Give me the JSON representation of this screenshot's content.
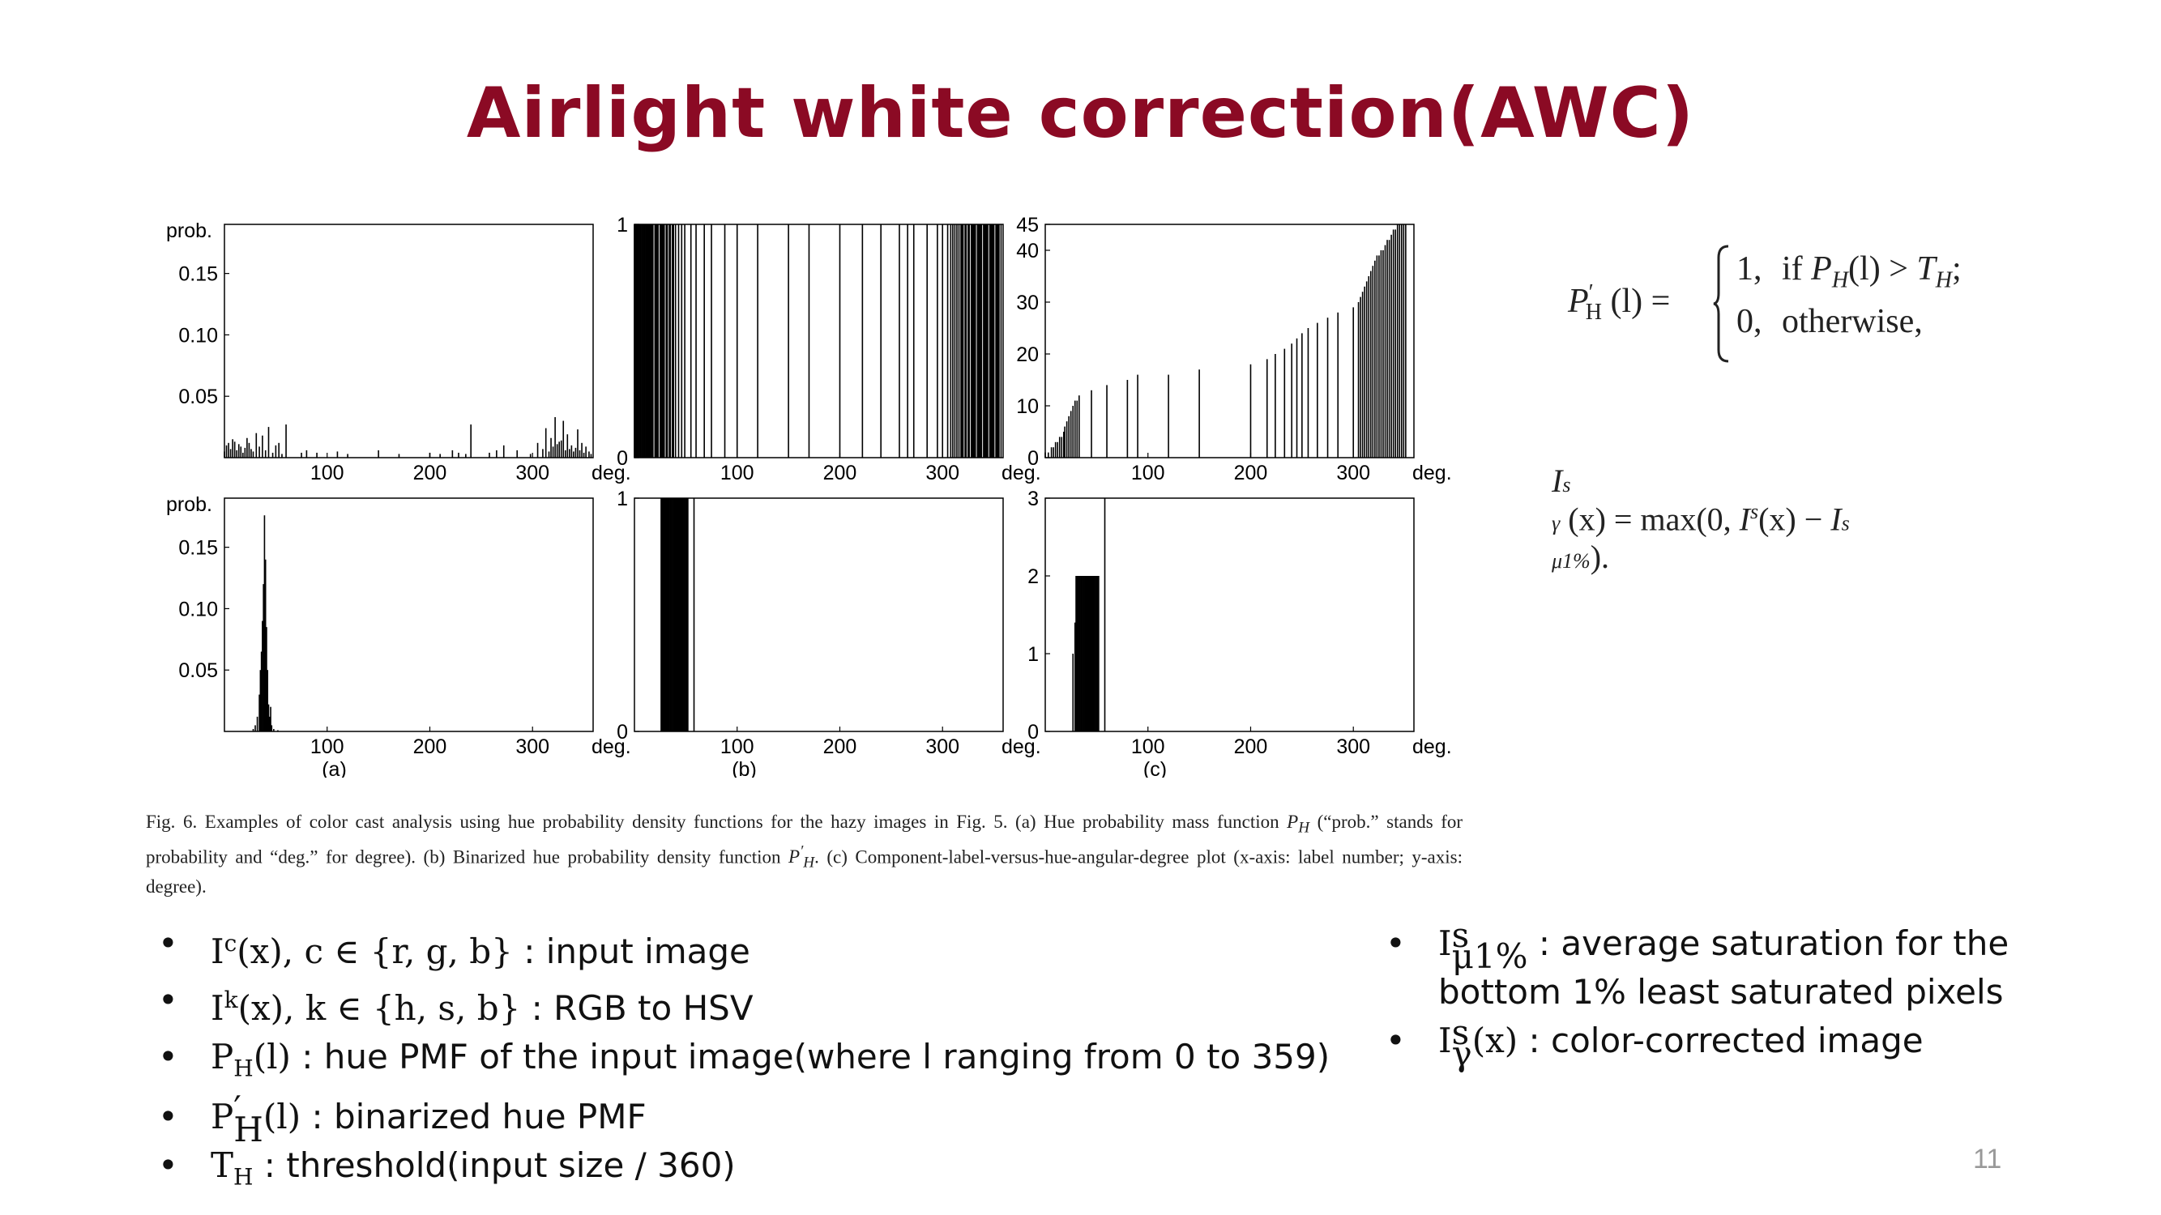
{
  "title": "Airlight white correction(AWC)",
  "colors": {
    "title": "#8b0a24",
    "bar": "#000000"
  },
  "figure": {
    "caption_label": "Fig. 6.",
    "caption_p1": "Examples of color cast analysis using hue probability density functions for the hazy images in Fig. 5. (a) Hue probability mass function",
    "caption_sym1": "P",
    "caption_sym1_sub": "H",
    "caption_p2": "(“prob.” stands for probability and “deg.” for degree). (b) Binarized hue probability density function",
    "caption_sym2": "P",
    "caption_sym2_sup": "′",
    "caption_sym2_sub": "H",
    "caption_p3": ". (c) Component-label-versus-hue-angular-degree plot (x-axis: label number; y-axis: degree)."
  },
  "chart_data": [
    {
      "id": "a-top",
      "type": "bar",
      "ylabel": "prob.",
      "xlabel": "deg.",
      "xlim": [
        0,
        359
      ],
      "ylim": [
        0,
        0.19
      ],
      "yticks": [
        "0.05",
        "0.10",
        "0.15"
      ],
      "ytick_values": [
        0.05,
        0.1,
        0.15
      ],
      "xticks": [
        "100",
        "200",
        "300"
      ],
      "xtick_values": [
        100,
        200,
        300
      ],
      "subplot_label": "",
      "bars": [
        [
          0,
          0.005
        ],
        [
          2,
          0.01
        ],
        [
          4,
          0.012
        ],
        [
          6,
          0.007
        ],
        [
          8,
          0.015
        ],
        [
          10,
          0.013
        ],
        [
          12,
          0.006
        ],
        [
          14,
          0.011
        ],
        [
          16,
          0.009
        ],
        [
          18,
          0.004
        ],
        [
          20,
          0.008
        ],
        [
          22,
          0.016
        ],
        [
          24,
          0.012
        ],
        [
          26,
          0.007
        ],
        [
          28,
          0.005
        ],
        [
          31,
          0.02
        ],
        [
          34,
          0.009
        ],
        [
          37,
          0.018
        ],
        [
          40,
          0.006
        ],
        [
          43,
          0.025
        ],
        [
          47,
          0.004
        ],
        [
          50,
          0.01
        ],
        [
          53,
          0.012
        ],
        [
          56,
          0.003
        ],
        [
          60,
          0.027
        ],
        [
          75,
          0.004
        ],
        [
          80,
          0.006
        ],
        [
          90,
          0.004
        ],
        [
          110,
          0.005
        ],
        [
          120,
          0.003
        ],
        [
          150,
          0.006
        ],
        [
          170,
          0.003
        ],
        [
          200,
          0.004
        ],
        [
          210,
          0.003
        ],
        [
          222,
          0.006
        ],
        [
          228,
          0.004
        ],
        [
          235,
          0.003
        ],
        [
          240,
          0.027
        ],
        [
          258,
          0.004
        ],
        [
          265,
          0.006
        ],
        [
          272,
          0.01
        ],
        [
          285,
          0.006
        ],
        [
          298,
          0.003
        ],
        [
          305,
          0.012
        ],
        [
          310,
          0.007
        ],
        [
          313,
          0.024
        ],
        [
          316,
          0.005
        ],
        [
          318,
          0.016
        ],
        [
          320,
          0.009
        ],
        [
          322,
          0.033
        ],
        [
          324,
          0.011
        ],
        [
          326,
          0.013
        ],
        [
          328,
          0.014
        ],
        [
          330,
          0.03
        ],
        [
          332,
          0.006
        ],
        [
          334,
          0.019
        ],
        [
          336,
          0.007
        ],
        [
          338,
          0.01
        ],
        [
          340,
          0.005
        ],
        [
          342,
          0.008
        ],
        [
          344,
          0.023
        ],
        [
          346,
          0.006
        ],
        [
          348,
          0.012
        ],
        [
          350,
          0.004
        ],
        [
          352,
          0.009
        ],
        [
          355,
          0.005
        ],
        [
          357,
          0.003
        ]
      ]
    },
    {
      "id": "b-top",
      "type": "bar",
      "ylabel": "",
      "xlabel": "deg.",
      "xlim": [
        0,
        359
      ],
      "ylim": [
        0,
        1
      ],
      "yticks": [
        "0",
        "1"
      ],
      "ytick_values": [
        0,
        1
      ],
      "xticks": [
        "100",
        "200",
        "300"
      ],
      "xtick_values": [
        100,
        200,
        300
      ],
      "subplot_label": "",
      "bars": [
        [
          0,
          1
        ],
        [
          1,
          1
        ],
        [
          2,
          1
        ],
        [
          3,
          1
        ],
        [
          4,
          1
        ],
        [
          5,
          1
        ],
        [
          6,
          1
        ],
        [
          7,
          1
        ],
        [
          8,
          1
        ],
        [
          9,
          1
        ],
        [
          10,
          1
        ],
        [
          11,
          1
        ],
        [
          12,
          1
        ],
        [
          13,
          1
        ],
        [
          14,
          1
        ],
        [
          15,
          1
        ],
        [
          16,
          1
        ],
        [
          17,
          1
        ],
        [
          18,
          1
        ],
        [
          20,
          1
        ],
        [
          21,
          1
        ],
        [
          22,
          1
        ],
        [
          23,
          1
        ],
        [
          25,
          1
        ],
        [
          26,
          1
        ],
        [
          27,
          1
        ],
        [
          28,
          1
        ],
        [
          29,
          1
        ],
        [
          31,
          1
        ],
        [
          32,
          1
        ],
        [
          34,
          1
        ],
        [
          35,
          1
        ],
        [
          37,
          1
        ],
        [
          38,
          1
        ],
        [
          40,
          1
        ],
        [
          43,
          1
        ],
        [
          46,
          1
        ],
        [
          49,
          1
        ],
        [
          55,
          1
        ],
        [
          60,
          1
        ],
        [
          68,
          1
        ],
        [
          75,
          1
        ],
        [
          88,
          1
        ],
        [
          100,
          1
        ],
        [
          120,
          1
        ],
        [
          150,
          1
        ],
        [
          170,
          1
        ],
        [
          200,
          1
        ],
        [
          222,
          1
        ],
        [
          240,
          1
        ],
        [
          258,
          1
        ],
        [
          266,
          1
        ],
        [
          272,
          1
        ],
        [
          285,
          1
        ],
        [
          295,
          1
        ],
        [
          300,
          1
        ],
        [
          305,
          1
        ],
        [
          308,
          1
        ],
        [
          310,
          1
        ],
        [
          312,
          1
        ],
        [
          314,
          1
        ],
        [
          316,
          1
        ],
        [
          318,
          1
        ],
        [
          319,
          1
        ],
        [
          320,
          1
        ],
        [
          322,
          1
        ],
        [
          323,
          1
        ],
        [
          325,
          1
        ],
        [
          326,
          1
        ],
        [
          328,
          1
        ],
        [
          329,
          1
        ],
        [
          330,
          1
        ],
        [
          331,
          1
        ],
        [
          332,
          1
        ],
        [
          334,
          1
        ],
        [
          335,
          1
        ],
        [
          336,
          1
        ],
        [
          337,
          1
        ],
        [
          338,
          1
        ],
        [
          340,
          1
        ],
        [
          341,
          1
        ],
        [
          342,
          1
        ],
        [
          343,
          1
        ],
        [
          344,
          1
        ],
        [
          346,
          1
        ],
        [
          347,
          1
        ],
        [
          348,
          1
        ],
        [
          349,
          1
        ],
        [
          350,
          1
        ],
        [
          352,
          1
        ],
        [
          353,
          1
        ],
        [
          354,
          1
        ],
        [
          355,
          1
        ],
        [
          357,
          1
        ]
      ]
    },
    {
      "id": "c-top",
      "type": "bar",
      "ylabel": "",
      "xlabel": "deg.",
      "xlim": [
        0,
        359
      ],
      "ylim": [
        0,
        45
      ],
      "yticks": [
        "0",
        "10",
        "20",
        "30",
        "40",
        "45"
      ],
      "ytick_values": [
        0,
        10,
        20,
        30,
        40,
        45
      ],
      "xticks": [
        "100",
        "200",
        "300"
      ],
      "xtick_values": [
        100,
        200,
        300
      ],
      "subplot_label": "",
      "bars": [
        [
          0,
          1
        ],
        [
          3,
          1
        ],
        [
          6,
          2
        ],
        [
          8,
          2
        ],
        [
          10,
          3
        ],
        [
          12,
          3
        ],
        [
          14,
          4
        ],
        [
          16,
          4
        ],
        [
          18,
          5
        ],
        [
          19,
          6
        ],
        [
          21,
          7
        ],
        [
          23,
          8
        ],
        [
          25,
          9
        ],
        [
          27,
          10
        ],
        [
          29,
          11
        ],
        [
          31,
          11
        ],
        [
          33,
          12
        ],
        [
          45,
          13
        ],
        [
          60,
          14
        ],
        [
          80,
          15
        ],
        [
          90,
          16
        ],
        [
          120,
          16
        ],
        [
          150,
          17
        ],
        [
          200,
          18
        ],
        [
          216,
          19
        ],
        [
          224,
          20
        ],
        [
          233,
          21
        ],
        [
          240,
          22
        ],
        [
          245,
          23
        ],
        [
          250,
          24
        ],
        [
          256,
          25
        ],
        [
          265,
          26
        ],
        [
          275,
          27
        ],
        [
          285,
          28
        ],
        [
          300,
          29
        ],
        [
          305,
          30
        ],
        [
          307,
          31
        ],
        [
          309,
          32
        ],
        [
          311,
          33
        ],
        [
          313,
          34
        ],
        [
          315,
          35
        ],
        [
          317,
          36
        ],
        [
          319,
          37
        ],
        [
          321,
          38
        ],
        [
          323,
          39
        ],
        [
          325,
          39
        ],
        [
          327,
          40
        ],
        [
          329,
          40
        ],
        [
          331,
          41
        ],
        [
          333,
          42
        ],
        [
          335,
          42
        ],
        [
          337,
          43
        ],
        [
          339,
          44
        ],
        [
          341,
          44
        ],
        [
          343,
          45
        ],
        [
          345,
          45
        ],
        [
          347,
          45
        ],
        [
          349,
          45
        ],
        [
          351,
          45
        ]
      ]
    },
    {
      "id": "a-bottom",
      "type": "bar",
      "ylabel": "prob.",
      "xlabel": "deg.",
      "xlim": [
        0,
        359
      ],
      "ylim": [
        0,
        0.19
      ],
      "yticks": [
        "0.05",
        "0.10",
        "0.15"
      ],
      "ytick_values": [
        0.05,
        0.1,
        0.15
      ],
      "xticks": [
        "100",
        "200",
        "300"
      ],
      "xtick_values": [
        100,
        200,
        300
      ],
      "subplot_label": "(a)",
      "bars": [
        [
          28,
          0.002
        ],
        [
          30,
          0.005
        ],
        [
          32,
          0.012
        ],
        [
          34,
          0.03
        ],
        [
          35,
          0.05
        ],
        [
          36,
          0.065
        ],
        [
          37,
          0.09
        ],
        [
          38,
          0.12
        ],
        [
          39,
          0.176
        ],
        [
          40,
          0.14
        ],
        [
          41,
          0.085
        ],
        [
          42,
          0.05
        ],
        [
          43,
          0.022
        ],
        [
          44,
          0.012
        ],
        [
          45,
          0.02
        ],
        [
          46,
          0.005
        ],
        [
          48,
          0.002
        ],
        [
          52,
          0.001
        ]
      ]
    },
    {
      "id": "b-bottom",
      "type": "bar",
      "ylabel": "",
      "xlabel": "deg.",
      "xlim": [
        0,
        359
      ],
      "ylim": [
        0,
        1
      ],
      "yticks": [
        "0",
        "1"
      ],
      "ytick_values": [
        0,
        1
      ],
      "xticks": [
        "100",
        "200",
        "300"
      ],
      "xtick_values": [
        100,
        200,
        300
      ],
      "subplot_label": "(b)",
      "bars": [
        [
          26,
          1
        ],
        [
          27,
          1
        ],
        [
          28,
          1
        ],
        [
          29,
          1
        ],
        [
          30,
          1
        ],
        [
          31,
          1
        ],
        [
          32,
          1
        ],
        [
          33,
          1
        ],
        [
          34,
          1
        ],
        [
          35,
          1
        ],
        [
          36,
          1
        ],
        [
          37,
          1
        ],
        [
          38,
          1
        ],
        [
          39,
          1
        ],
        [
          40,
          1
        ],
        [
          41,
          1
        ],
        [
          42,
          1
        ],
        [
          43,
          1
        ],
        [
          44,
          1
        ],
        [
          45,
          1
        ],
        [
          46,
          1
        ],
        [
          47,
          1
        ],
        [
          48,
          1
        ],
        [
          49,
          1
        ],
        [
          50,
          1
        ],
        [
          51,
          1
        ],
        [
          52,
          1
        ],
        [
          58,
          1
        ]
      ]
    },
    {
      "id": "c-bottom",
      "type": "bar",
      "ylabel": "",
      "xlabel": "deg.",
      "xlim": [
        0,
        359
      ],
      "ylim": [
        0,
        3
      ],
      "yticks": [
        "0",
        "1",
        "2",
        "3"
      ],
      "ytick_values": [
        0,
        1,
        2,
        3
      ],
      "xticks": [
        "100",
        "200",
        "300"
      ],
      "xtick_values": [
        100,
        200,
        300
      ],
      "subplot_label": "(c)",
      "bars": [
        [
          27,
          1
        ],
        [
          29,
          1.4
        ],
        [
          30,
          2
        ],
        [
          31,
          2
        ],
        [
          32,
          2
        ],
        [
          33,
          2
        ],
        [
          34,
          2
        ],
        [
          35,
          2
        ],
        [
          36,
          2
        ],
        [
          37,
          2
        ],
        [
          38,
          2
        ],
        [
          39,
          2
        ],
        [
          40,
          2
        ],
        [
          41,
          2
        ],
        [
          42,
          2
        ],
        [
          43,
          2
        ],
        [
          44,
          2
        ],
        [
          45,
          2
        ],
        [
          46,
          2
        ],
        [
          47,
          2
        ],
        [
          48,
          2
        ],
        [
          49,
          2
        ],
        [
          50,
          2
        ],
        [
          51,
          2
        ],
        [
          52,
          2
        ],
        [
          58,
          3
        ]
      ]
    }
  ],
  "equations": {
    "binarize": {
      "lhs_base": "P",
      "lhs_sup": "′",
      "lhs_sub": "H",
      "lhs_arg": "(l) =",
      "case1_val": "1,",
      "case1_if": "if",
      "case1_cond_base": "P",
      "case1_cond_sub": "H",
      "case1_cond_rest": "(l) >",
      "case1_thr_base": "T",
      "case1_thr_sub": "H",
      "case1_end": ";",
      "case2_val": "0,",
      "case2_text": "otherwise,"
    },
    "correct": {
      "lhs_base": "I",
      "lhs_sup": "s",
      "lhs_sub": "γ",
      "lhs_arg": "(x) = max(0,",
      "mid_base": "I",
      "mid_sup": "s",
      "mid_rest": "(x) −",
      "rhs_base": "I",
      "rhs_sup": "s",
      "rhs_sub": "μ1%",
      "end": ")."
    }
  },
  "bullets_left": [
    {
      "base": "I",
      "sup": "c",
      "rest": "(x), c  ∈ {r, g, b}",
      "desc": " : input image"
    },
    {
      "base": "I",
      "sup": "k",
      "rest": "(x), k  ∈ {h, s, b}",
      "desc": " : RGB to HSV"
    },
    {
      "base": "P",
      "sub": "H",
      "rest": "(l)",
      "desc": " : hue PMF of the input image(where l ranging from 0 to 359)"
    },
    {
      "base": "P",
      "sup": "′",
      "sub": "H",
      "rest": "(l)",
      "desc": " : binarized hue PMF"
    },
    {
      "base": "T",
      "sub": "H",
      "rest": "",
      "desc": " : threshold(input size / 360)"
    }
  ],
  "bullets_right": [
    {
      "base": "I",
      "sup": "s",
      "sub": "μ1%",
      "rest": "",
      "desc": " : average saturation for the bottom 1% least saturated pixels"
    },
    {
      "base": "I",
      "sup": "s",
      "sub": "γ",
      "rest": "(x)",
      "desc": " : color-corrected image"
    }
  ],
  "page_number": "11"
}
